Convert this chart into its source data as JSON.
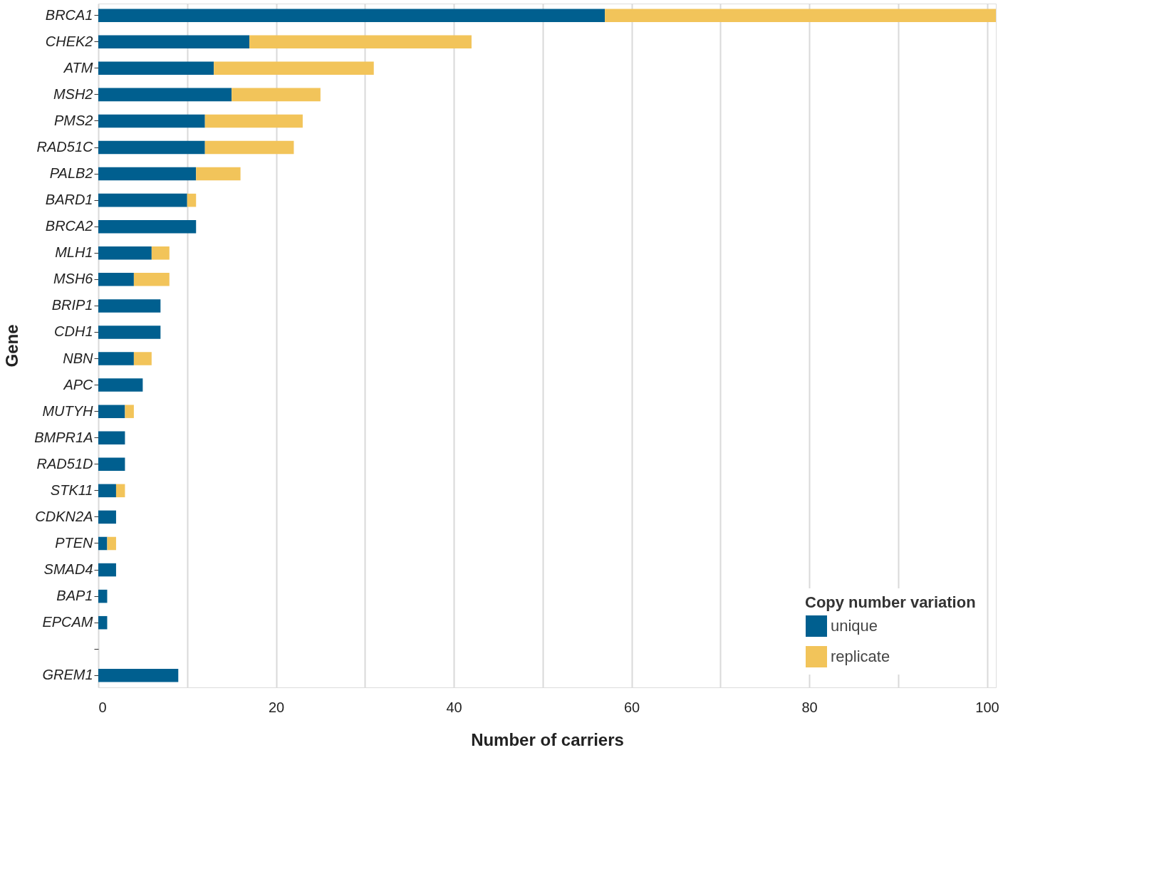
{
  "chart_data": {
    "type": "bar",
    "orientation": "horizontal",
    "stacked": true,
    "categories": [
      "BRCA1",
      "CHEK2",
      "ATM",
      "MSH2",
      "PMS2",
      "RAD51C",
      "PALB2",
      "BARD1",
      "BRCA2",
      "MLH1",
      "MSH6",
      "BRIP1",
      "CDH1",
      "NBN",
      "APC",
      "MUTYH",
      "BMPR1A",
      "RAD51D",
      "STK11",
      "CDKN2A",
      "PTEN",
      "SMAD4",
      "BAP1",
      "EPCAM",
      null,
      "GREM1"
    ],
    "series": [
      {
        "name": "unique",
        "color": "#005f8f",
        "values": [
          57,
          17,
          13,
          15,
          12,
          12,
          11,
          10,
          11,
          6,
          4,
          7,
          7,
          4,
          5,
          3,
          3,
          3,
          2,
          2,
          1,
          2,
          1,
          1,
          null,
          9
        ]
      },
      {
        "name": "replicate",
        "color": "#f2c45a",
        "values": [
          44,
          25,
          18,
          10,
          11,
          10,
          5,
          1,
          0,
          2,
          4,
          0,
          0,
          2,
          0,
          1,
          0,
          0,
          1,
          0,
          1,
          0,
          0,
          0,
          null,
          0
        ]
      }
    ],
    "xlabel": "Number of carriers",
    "ylabel": "Gene",
    "legend_title": "Copy number variation",
    "xlim": [
      0,
      101
    ],
    "xticks": [
      0,
      {
        "value": 10,
        "label": null
      },
      20,
      {
        "value": 30,
        "label": null
      },
      40,
      {
        "value": 50,
        "label": null
      },
      60,
      {
        "value": 70,
        "label": null
      },
      80,
      {
        "value": 90,
        "label": null
      },
      100
    ],
    "grid": "x",
    "legend": "bottom right"
  }
}
